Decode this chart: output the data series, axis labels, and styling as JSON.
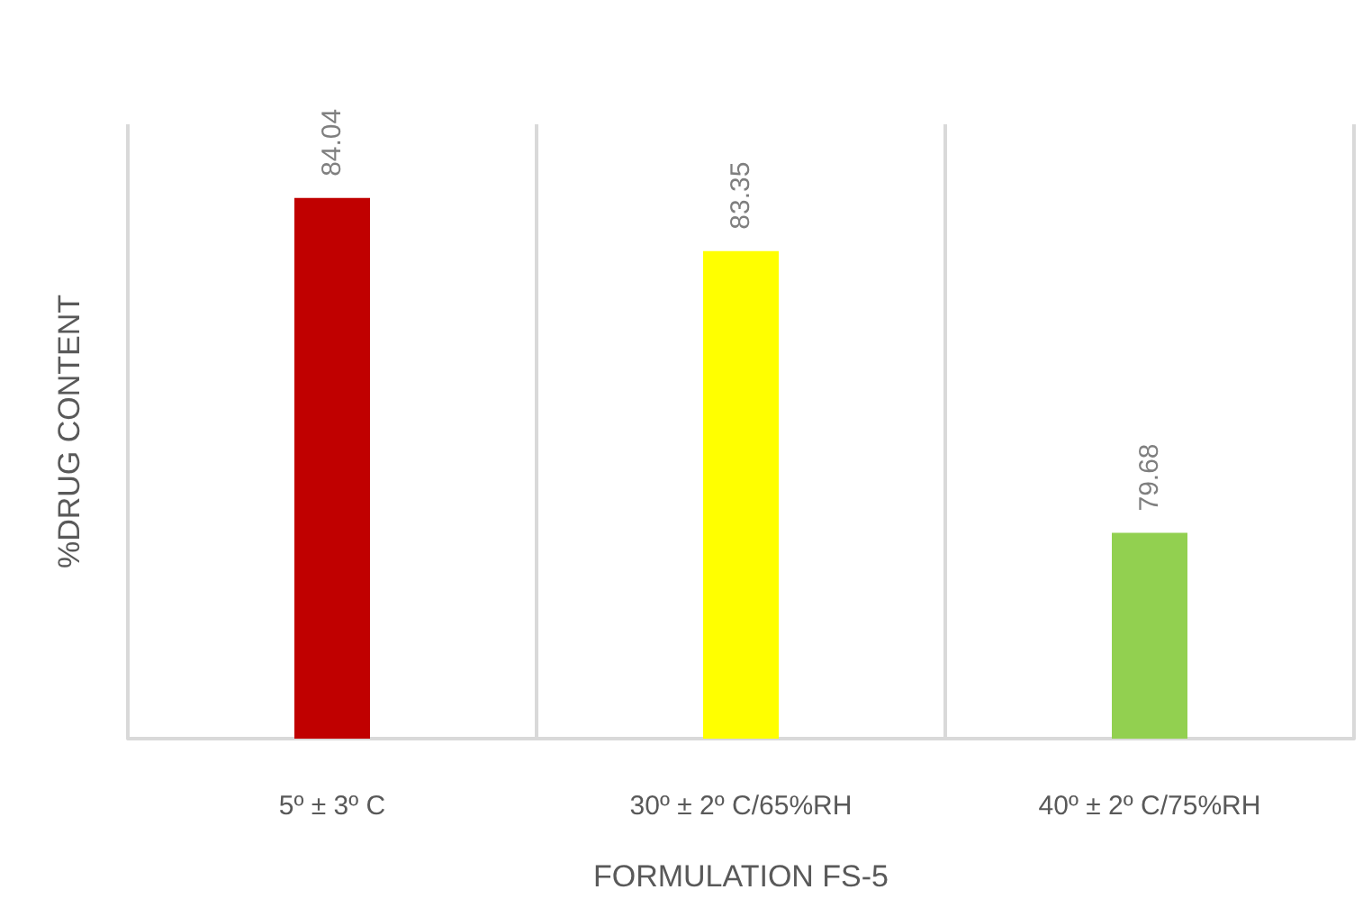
{
  "chart_data": {
    "type": "bar",
    "xlabel": "FORMULATION FS-5",
    "ylabel": "%DRUG CONTENT",
    "categories": [
      "5º ± 3º C",
      "30º ± 2º C/65%RH",
      "40º ± 2º C/75%RH"
    ],
    "values": [
      84.04,
      83.35,
      79.68
    ],
    "colors": [
      "#c00000",
      "#ffff00",
      "#92d050"
    ],
    "ylim": [
      77,
      85
    ],
    "tick_labels": "x",
    "grid": "x",
    "data_labels": true
  }
}
